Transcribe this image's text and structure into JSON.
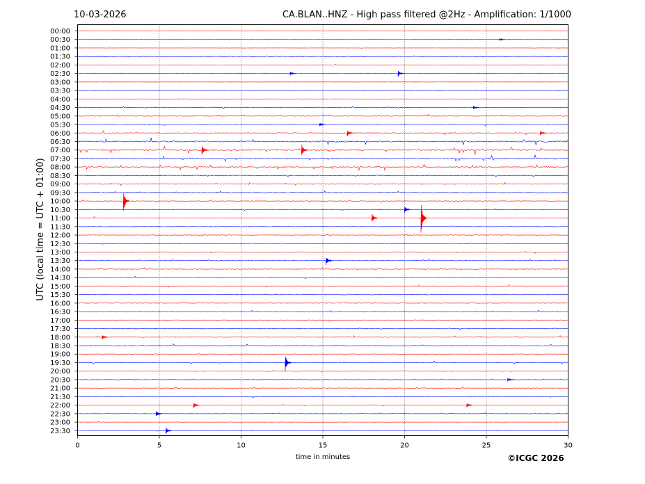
{
  "header": {
    "date": "10-03-2026",
    "title": "CA.BLAN..HNZ - High pass filtered @2Hz - Amplification: 1/1000"
  },
  "footer": {
    "copyright": "©ICGC 2026"
  },
  "chart_data": {
    "type": "line",
    "title": "CA.BLAN..HNZ - High pass filtered @2Hz - Amplification: 1/1000",
    "xlabel": "time in minutes",
    "ylabel": "UTC (local time = UTC + 01:00)",
    "xlim": [
      0,
      30
    ],
    "xticks": [
      0,
      5,
      10,
      15,
      20,
      25,
      30
    ],
    "grid": "vertical dotted lines at 5-minute ticks",
    "row_labels": [
      "00:00",
      "00:30",
      "01:00",
      "01:30",
      "02:00",
      "02:30",
      "03:00",
      "03:30",
      "04:00",
      "04:30",
      "05:00",
      "05:30",
      "06:00",
      "06:30",
      "07:00",
      "07:30",
      "08:00",
      "08:30",
      "09:00",
      "09:30",
      "10:00",
      "10:30",
      "11:00",
      "11:30",
      "12:00",
      "12:30",
      "13:00",
      "13:30",
      "14:00",
      "14:30",
      "15:00",
      "15:30",
      "16:00",
      "16:30",
      "17:00",
      "17:30",
      "18:00",
      "18:30",
      "19:00",
      "19:30",
      "20:00",
      "20:30",
      "21:00",
      "21:30",
      "22:00",
      "22:30",
      "23:00",
      "23:30"
    ],
    "trace_colors": [
      "#ff0000",
      "#0000ff"
    ],
    "noise_level": [
      0.3,
      0.3,
      0.3,
      0.5,
      0.5,
      0.7,
      0.3,
      0.3,
      0.8,
      1.0,
      1.0,
      1.2,
      1.8,
      2.6,
      2.8,
      2.6,
      2.2,
      1.6,
      1.3,
      1.0,
      1.0,
      1.0,
      1.0,
      1.0,
      1.0,
      1.1,
      1.1,
      1.1,
      1.1,
      1.1,
      1.1,
      1.0,
      1.0,
      1.0,
      0.8,
      1.0,
      1.1,
      1.0,
      1.0,
      1.2,
      1.1,
      1.0,
      1.0,
      0.9,
      0.8,
      0.7,
      0.5,
      0.6
    ],
    "events": [
      {
        "row": "00:30",
        "minute": 25.8,
        "amplitude": 2
      },
      {
        "row": "02:30",
        "minute": 19.6,
        "amplitude": 5
      },
      {
        "row": "02:30",
        "minute": 13.0,
        "amplitude": 3
      },
      {
        "row": "04:30",
        "minute": 24.2,
        "amplitude": 3
      },
      {
        "row": "05:30",
        "minute": 14.8,
        "amplitude": 3
      },
      {
        "row": "06:00",
        "minute": 16.5,
        "amplitude": 5
      },
      {
        "row": "06:00",
        "minute": 28.3,
        "amplitude": 4
      },
      {
        "row": "07:00",
        "minute": 13.7,
        "amplitude": 10
      },
      {
        "row": "07:00",
        "minute": 7.6,
        "amplitude": 8
      },
      {
        "row": "10:00",
        "minute": 2.8,
        "amplitude": 16
      },
      {
        "row": "10:30",
        "minute": 20.0,
        "amplitude": 5
      },
      {
        "row": "11:00",
        "minute": 21.0,
        "amplitude": 24
      },
      {
        "row": "11:00",
        "minute": 18.0,
        "amplitude": 7
      },
      {
        "row": "13:30",
        "minute": 15.2,
        "amplitude": 7
      },
      {
        "row": "18:00",
        "minute": 1.5,
        "amplitude": 4
      },
      {
        "row": "19:30",
        "minute": 12.7,
        "amplitude": 12
      },
      {
        "row": "20:30",
        "minute": 26.3,
        "amplitude": 3
      },
      {
        "row": "22:00",
        "minute": 7.1,
        "amplitude": 5
      },
      {
        "row": "22:00",
        "minute": 23.8,
        "amplitude": 4
      },
      {
        "row": "22:30",
        "minute": 4.8,
        "amplitude": 5
      },
      {
        "row": "23:30",
        "minute": 5.4,
        "amplitude": 5
      }
    ]
  }
}
